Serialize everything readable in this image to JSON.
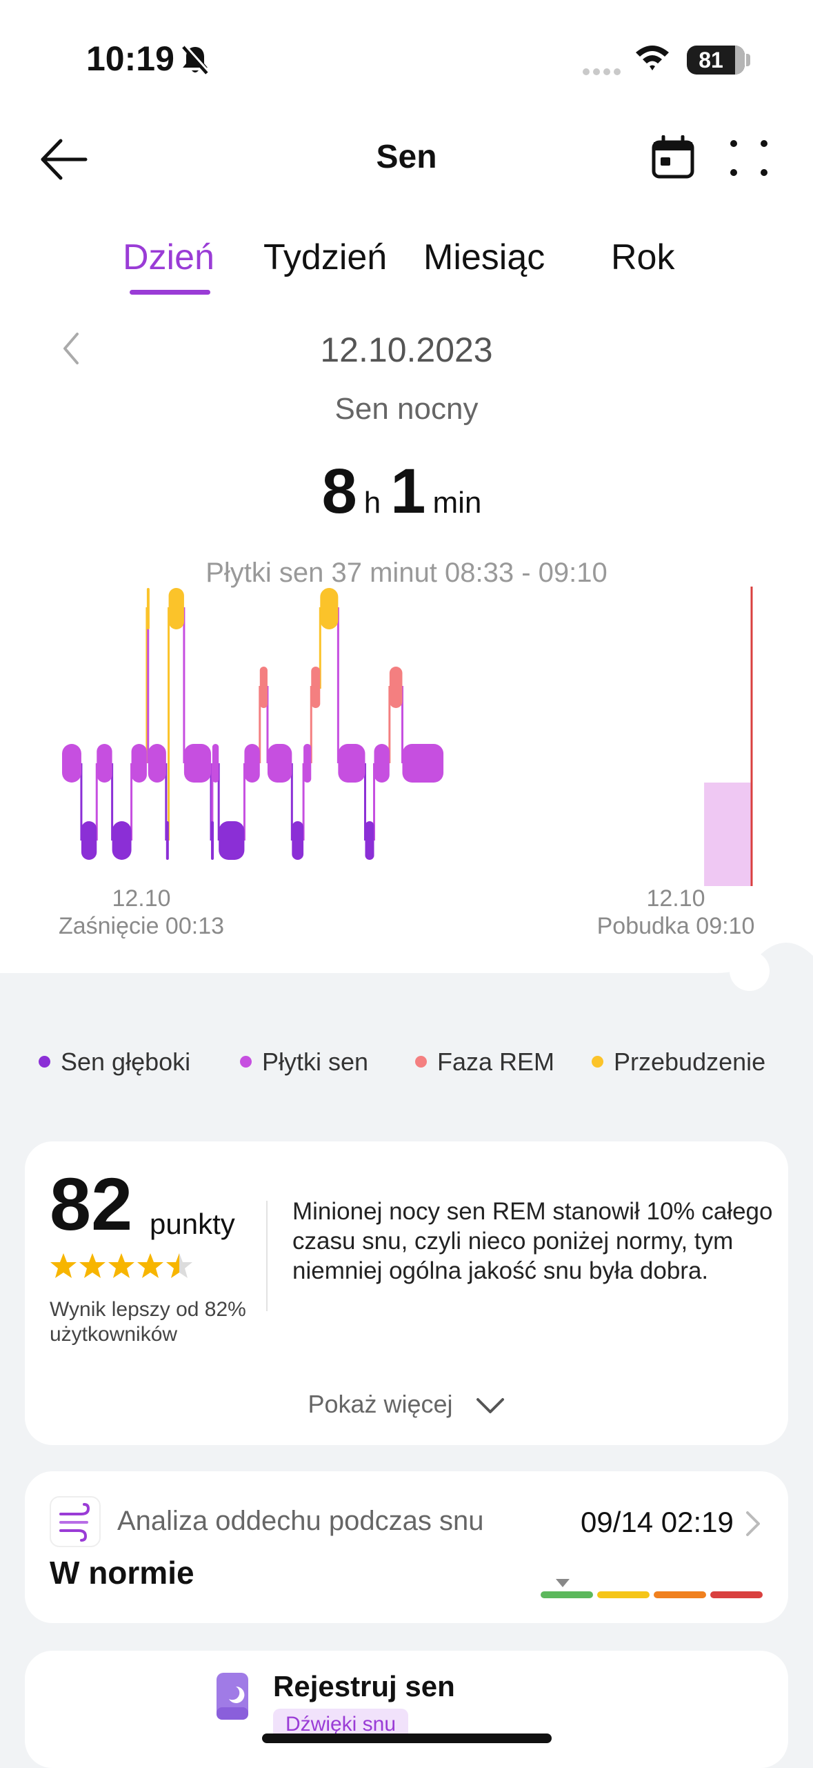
{
  "status_bar": {
    "time": "10:19",
    "battery": "81"
  },
  "header": {
    "title": "Sen"
  },
  "tabs": [
    {
      "label": "Dzień",
      "active": true
    },
    {
      "label": "Tydzień",
      "active": false
    },
    {
      "label": "Miesiąc",
      "active": false
    },
    {
      "label": "Rok",
      "active": false
    }
  ],
  "day": {
    "date": "12.10.2023",
    "subtitle": "Sen nocny",
    "hours": "8",
    "hours_unit": "h",
    "minutes": "1",
    "minutes_unit": "min",
    "tooltip": "Płytki sen 37 minut 08:33 - 09:10",
    "start_date": "12.10",
    "start_label": "Zaśnięcie 00:13",
    "end_date": "12.10",
    "end_label": "Pobudka 09:10"
  },
  "chart_data": {
    "type": "sleep-stages",
    "start": "00:13",
    "end": "09:10",
    "stages": [
      "Sen głęboki",
      "Płytki sen",
      "Faza REM",
      "Przebudzenie"
    ],
    "colors": {
      "deep": "#8b2fd6",
      "light": "#c64fe0",
      "rem": "#f47f80",
      "awake": "#fbc32a",
      "selected": "#efc8f3"
    },
    "selected_segment": {
      "stage": "Płytki sen",
      "start": "08:33",
      "end": "09:10",
      "minutes": 37
    },
    "segments": [
      {
        "stage": "light",
        "start": "00:13",
        "end": "00:28"
      },
      {
        "stage": "deep",
        "start": "00:28",
        "end": "00:40"
      },
      {
        "stage": "light",
        "start": "00:40",
        "end": "00:52"
      },
      {
        "stage": "deep",
        "start": "00:52",
        "end": "01:07"
      },
      {
        "stage": "light",
        "start": "01:07",
        "end": "01:19"
      },
      {
        "stage": "awake",
        "start": "01:19",
        "end": "01:20"
      },
      {
        "stage": "light",
        "start": "01:20",
        "end": "01:34"
      },
      {
        "stage": "deep",
        "start": "01:34",
        "end": "01:36"
      },
      {
        "stage": "awake",
        "start": "01:36",
        "end": "01:48"
      },
      {
        "stage": "light",
        "start": "01:48",
        "end": "02:09"
      },
      {
        "stage": "deep",
        "start": "02:09",
        "end": "02:10"
      },
      {
        "stage": "light",
        "start": "02:10",
        "end": "02:15"
      },
      {
        "stage": "deep",
        "start": "02:15",
        "end": "02:35"
      },
      {
        "stage": "light",
        "start": "02:35",
        "end": "02:47"
      },
      {
        "stage": "rem",
        "start": "02:47",
        "end": "02:53"
      },
      {
        "stage": "light",
        "start": "02:53",
        "end": "03:12"
      },
      {
        "stage": "deep",
        "start": "03:12",
        "end": "03:21"
      },
      {
        "stage": "light",
        "start": "03:21",
        "end": "03:27"
      },
      {
        "stage": "rem",
        "start": "03:27",
        "end": "03:34"
      },
      {
        "stage": "awake",
        "start": "03:34",
        "end": "03:48"
      },
      {
        "stage": "light",
        "start": "03:48",
        "end": "04:09"
      },
      {
        "stage": "deep",
        "start": "04:09",
        "end": "04:16"
      },
      {
        "stage": "light",
        "start": "04:16",
        "end": "04:28"
      },
      {
        "stage": "rem",
        "start": "04:28",
        "end": "04:38"
      },
      {
        "stage": "light",
        "start": "04:38",
        "end": "05:10"
      }
    ]
  },
  "legend": [
    {
      "label": "Sen głęboki",
      "color": "#8b2fd6"
    },
    {
      "label": "Płytki sen",
      "color": "#c64fe0"
    },
    {
      "label": "Faza REM",
      "color": "#f47f80"
    },
    {
      "label": "Przebudzenie",
      "color": "#fbc32a"
    }
  ],
  "score_card": {
    "score": "82",
    "score_unit": "punkty",
    "stars": 4.5,
    "better_than": "Wynik lepszy od 82% użytkowników",
    "summary": "Minionej nocy sen REM stanowił 10% całego czasu snu, czyli nieco poniżej normy, tym niemniej ogólna jakość snu była dobra.",
    "show_more": "Pokaż więcej"
  },
  "breathing_card": {
    "title": "Analiza oddechu podczas snu",
    "time": "09/14 02:19",
    "status": "W normie",
    "scale_colors": [
      "#5cb85c",
      "#f5c518",
      "#f0801e",
      "#d9403f"
    ]
  },
  "record_card": {
    "title": "Rejestruj sen",
    "badge": "Dźwięki snu"
  }
}
